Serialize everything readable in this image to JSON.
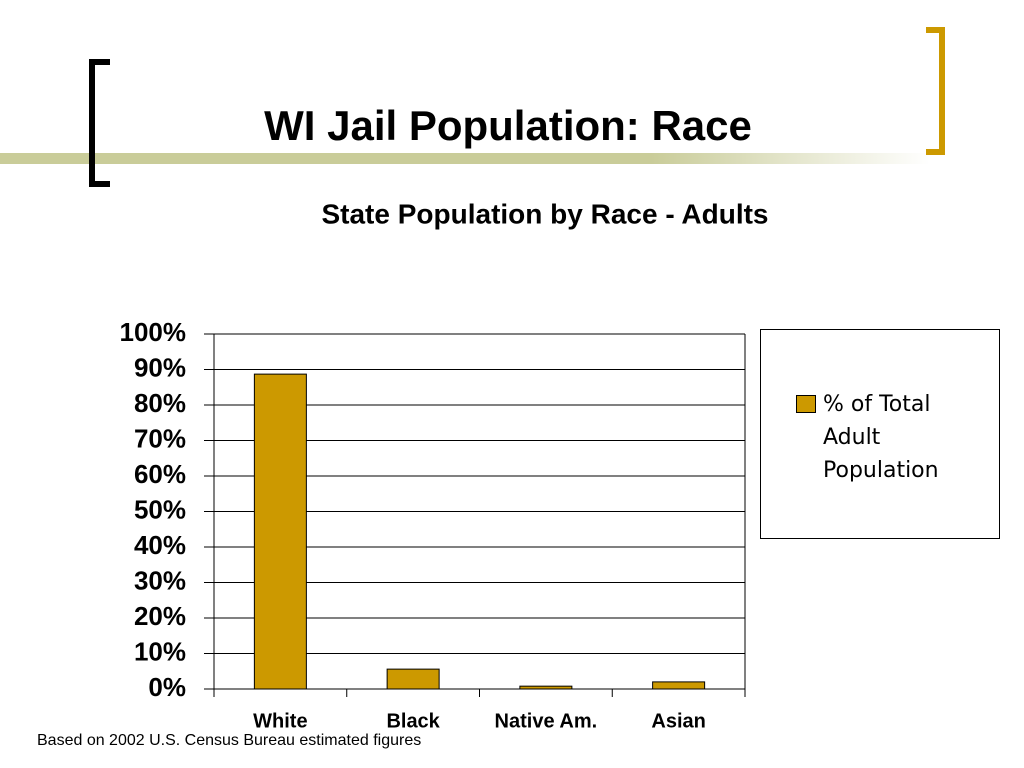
{
  "slide_title": "WI Jail Population: Race",
  "source": "Based on 2002 U.S. Census Bureau estimated figures",
  "chart_data": {
    "type": "bar",
    "title": "State Population by Race - Adults",
    "categories": [
      "White",
      "Black",
      "Native Am.",
      "Asian"
    ],
    "series": [
      {
        "name": "% of Total Adult Population",
        "color": "#cc9900",
        "values": [
          88.7,
          5.6,
          0.8,
          2.0
        ]
      }
    ],
    "ylim": [
      0,
      100
    ],
    "yticks": [
      {
        "value": 0,
        "label": "0%"
      },
      {
        "value": 10,
        "label": "10%"
      },
      {
        "value": 20,
        "label": "20%"
      },
      {
        "value": 30,
        "label": "30%"
      },
      {
        "value": 40,
        "label": "40%"
      },
      {
        "value": 50,
        "label": "50%"
      },
      {
        "value": 60,
        "label": "60%"
      },
      {
        "value": 70,
        "label": "70%"
      },
      {
        "value": 80,
        "label": "80%"
      },
      {
        "value": 90,
        "label": "90%"
      },
      {
        "value": 100,
        "label": "100%"
      }
    ],
    "grid": true,
    "legend": "right"
  }
}
